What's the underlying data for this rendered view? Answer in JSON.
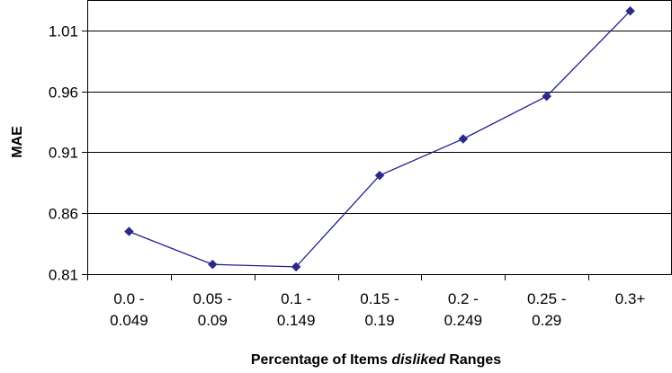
{
  "chart_data": {
    "type": "line",
    "title": "",
    "xlabel": {
      "prefix": "Percentage of Items ",
      "emphasis": "disliked",
      "suffix": " Ranges"
    },
    "ylabel": "MAE",
    "categories": [
      [
        "0.0 -",
        "0.049"
      ],
      [
        "0.05 -",
        "0.09"
      ],
      [
        "0.1 -",
        "0.149"
      ],
      [
        "0.15 -",
        "0.19"
      ],
      [
        "0.2 -",
        "0.249"
      ],
      [
        "0.25 -",
        "0.29"
      ],
      [
        "0.3+"
      ]
    ],
    "series": [
      {
        "values": [
          0.845,
          0.818,
          0.816,
          0.891,
          0.921,
          0.956,
          1.026
        ]
      }
    ],
    "ylim": [
      0.81,
      1.035
    ],
    "yticks": [
      0.81,
      0.86,
      0.91,
      0.96,
      1.01
    ],
    "ytick_labels": [
      "0.81",
      "0.86",
      "0.91",
      "0.96",
      "1.01"
    ],
    "grid": true,
    "colors": {
      "line": "#1f1f8f",
      "marker": "#2a2a8a",
      "grid": "#000000"
    }
  }
}
